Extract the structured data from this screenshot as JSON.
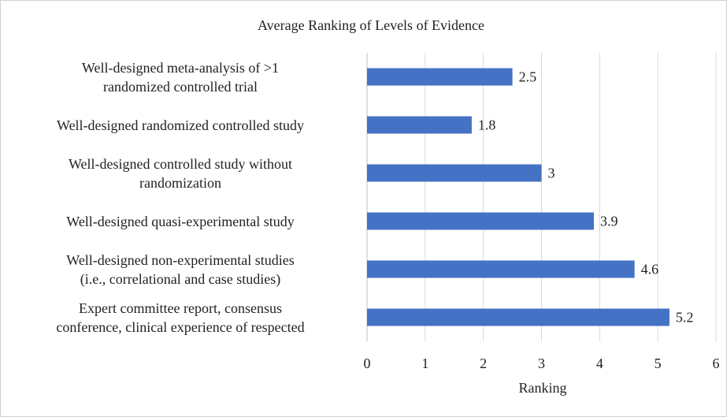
{
  "chart_data": {
    "type": "barh",
    "title": "Average Ranking of Levels of Evidence",
    "categories": [
      "Well-designed meta-analysis of >1\nrandomized controlled trial",
      "Well-designed randomized controlled study",
      "Well-designed controlled study without\nrandomization",
      "Well-designed quasi-experimental study",
      "Well-designed non-experimental studies\n(i.e., correlational and case studies)",
      "Expert committee report, consensus\nconference, clinical experience of respected"
    ],
    "values": [
      2.5,
      1.8,
      3,
      3.9,
      4.6,
      5.2
    ],
    "color": "#4472c4",
    "xlabel": "Ranking",
    "xlim": [
      0,
      6
    ],
    "xticks": [
      0,
      1,
      2,
      3,
      4,
      5,
      6
    ],
    "grid": true
  }
}
